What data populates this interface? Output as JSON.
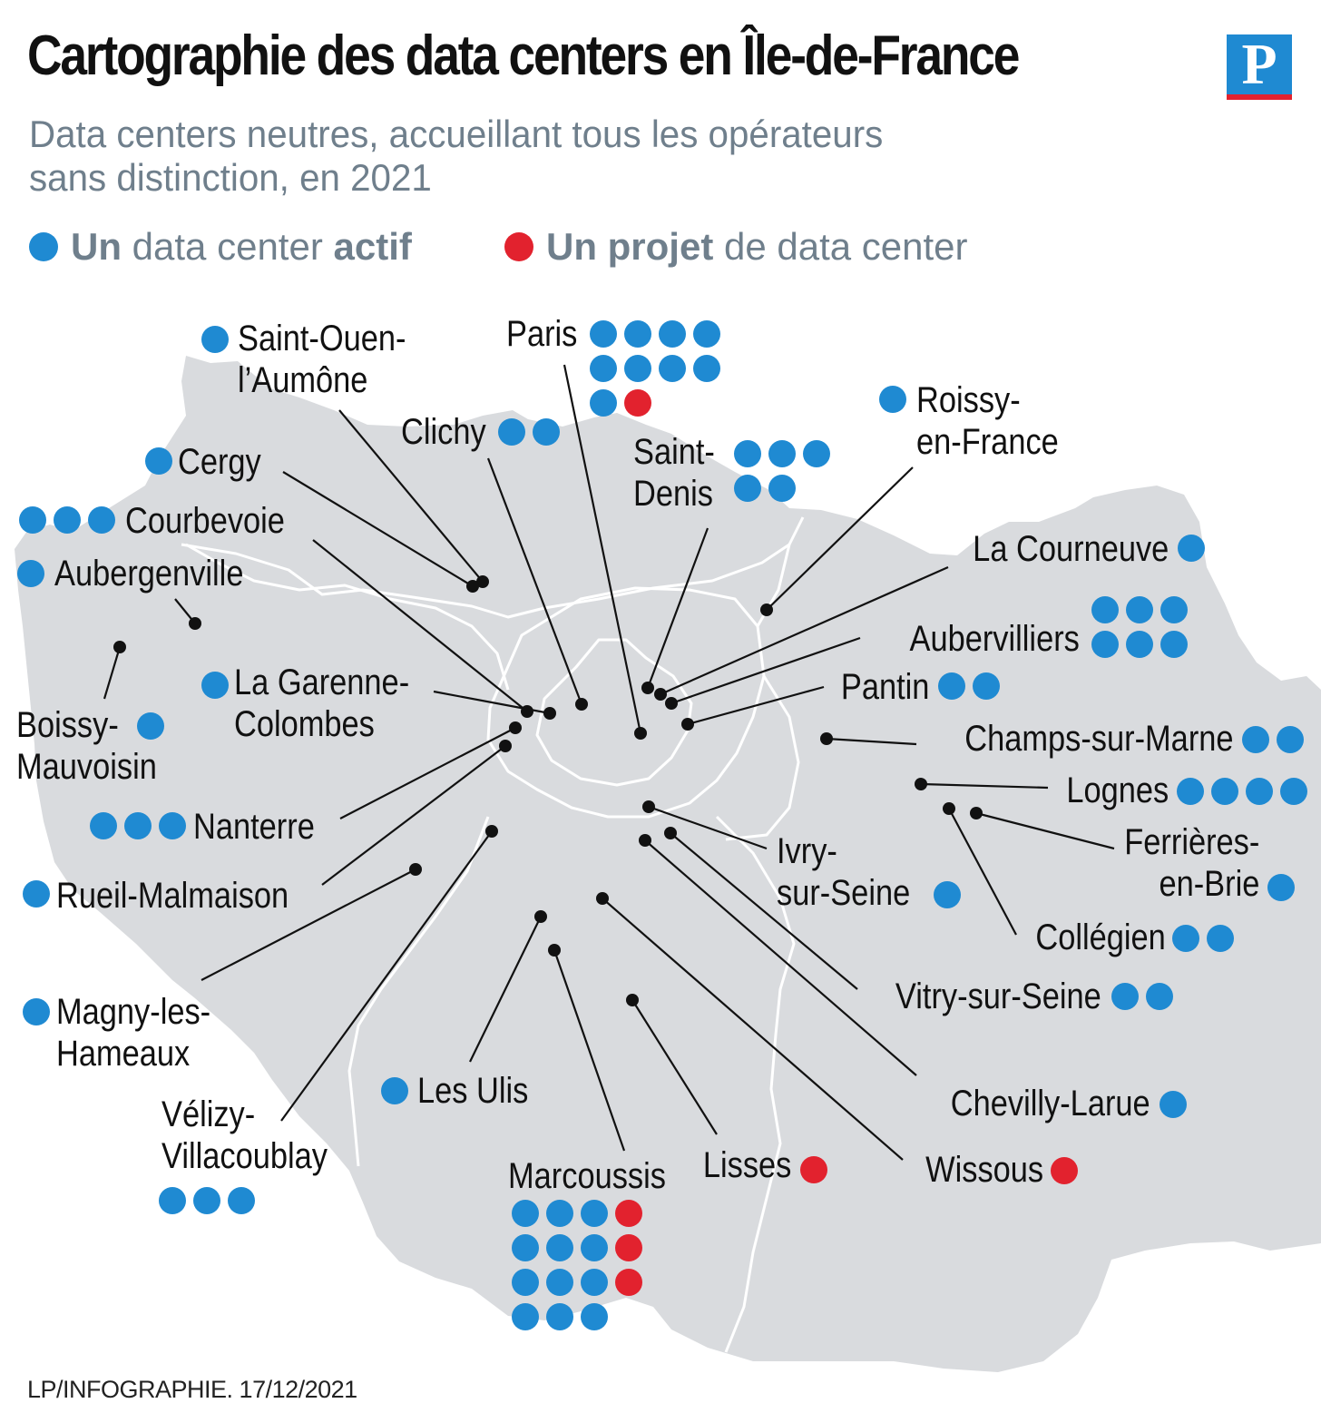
{
  "title": "Cartographie des data centers en Île-de-France",
  "logo": "P",
  "subtitle_line1": "Data centers neutres, accueillant tous les opérateurs",
  "subtitle_line2": "sans distinction, en 2021",
  "legend": {
    "active_bold": "Un",
    "active_text": " data center ",
    "active_bold2": "actif",
    "project_bold": "Un projet",
    "project_text": " de data center"
  },
  "colors": {
    "active": "#1f8ad2",
    "project": "#e2222e",
    "land": "#d9dbde",
    "border": "#ffffff",
    "text_gray": "#6f7f8c"
  },
  "cities": [
    {
      "name": "Paris",
      "active": 9,
      "projects": 1
    },
    {
      "name": "Saint-Ouen-l’Aumône",
      "active": 1,
      "projects": 0
    },
    {
      "name": "Clichy",
      "active": 2,
      "projects": 0
    },
    {
      "name": "Saint-Denis",
      "active": 5,
      "projects": 0
    },
    {
      "name": "Roissy-en-France",
      "active": 1,
      "projects": 0
    },
    {
      "name": "Cergy",
      "active": 1,
      "projects": 0
    },
    {
      "name": "Courbevoie",
      "active": 3,
      "projects": 0
    },
    {
      "name": "Aubergenville",
      "active": 1,
      "projects": 0
    },
    {
      "name": "La Courneuve",
      "active": 1,
      "projects": 0
    },
    {
      "name": "Aubervilliers",
      "active": 6,
      "projects": 0
    },
    {
      "name": "Pantin",
      "active": 2,
      "projects": 0
    },
    {
      "name": "La Garenne-Colombes",
      "active": 1,
      "projects": 0
    },
    {
      "name": "Boissy-Mauvoisin",
      "active": 1,
      "projects": 0
    },
    {
      "name": "Champs-sur-Marne",
      "active": 2,
      "projects": 0
    },
    {
      "name": "Lognes",
      "active": 4,
      "projects": 0
    },
    {
      "name": "Nanterre",
      "active": 3,
      "projects": 0
    },
    {
      "name": "Ferrières-en-Brie",
      "active": 1,
      "projects": 0
    },
    {
      "name": "Ivry-sur-Seine",
      "active": 1,
      "projects": 0
    },
    {
      "name": "Rueil-Malmaison",
      "active": 1,
      "projects": 0
    },
    {
      "name": "Collégien",
      "active": 2,
      "projects": 0
    },
    {
      "name": "Vitry-sur-Seine",
      "active": 2,
      "projects": 0
    },
    {
      "name": "Magny-les-Hameaux",
      "active": 1,
      "projects": 0
    },
    {
      "name": "Les Ulis",
      "active": 1,
      "projects": 0
    },
    {
      "name": "Chevilly-Larue",
      "active": 1,
      "projects": 0
    },
    {
      "name": "Vélizy-Villacoublay",
      "active": 3,
      "projects": 0
    },
    {
      "name": "Lisses",
      "active": 0,
      "projects": 1
    },
    {
      "name": "Wissous",
      "active": 0,
      "projects": 1
    },
    {
      "name": "Marcoussis",
      "active": 12,
      "projects": 3
    }
  ],
  "footer": "LP/INFOGRAPHIE.  17/12/2021"
}
